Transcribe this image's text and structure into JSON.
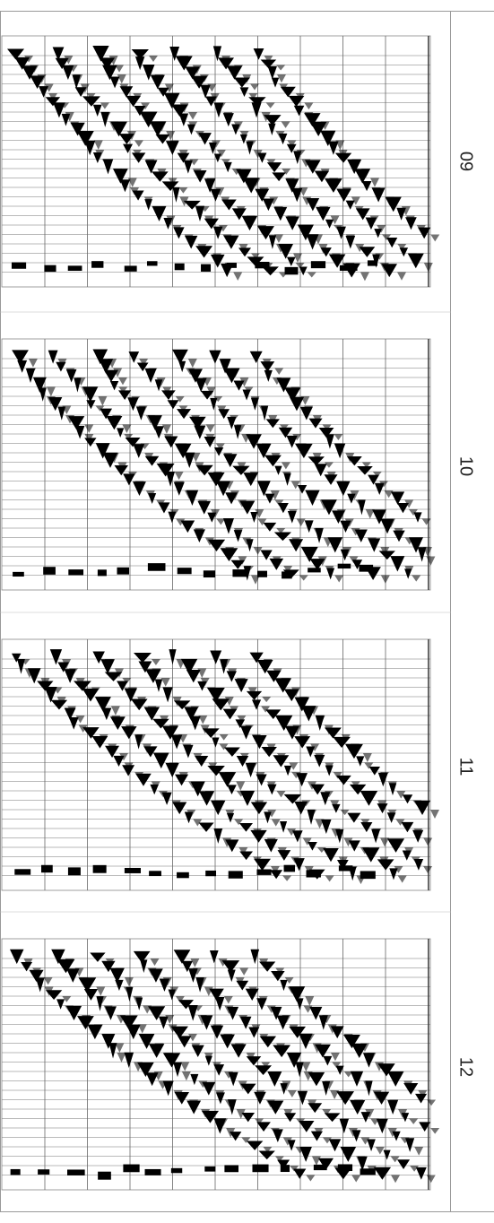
{
  "panels": [
    {
      "label": "09"
    },
    {
      "label": "10"
    },
    {
      "label": "11"
    },
    {
      "label": "12"
    }
  ]
}
